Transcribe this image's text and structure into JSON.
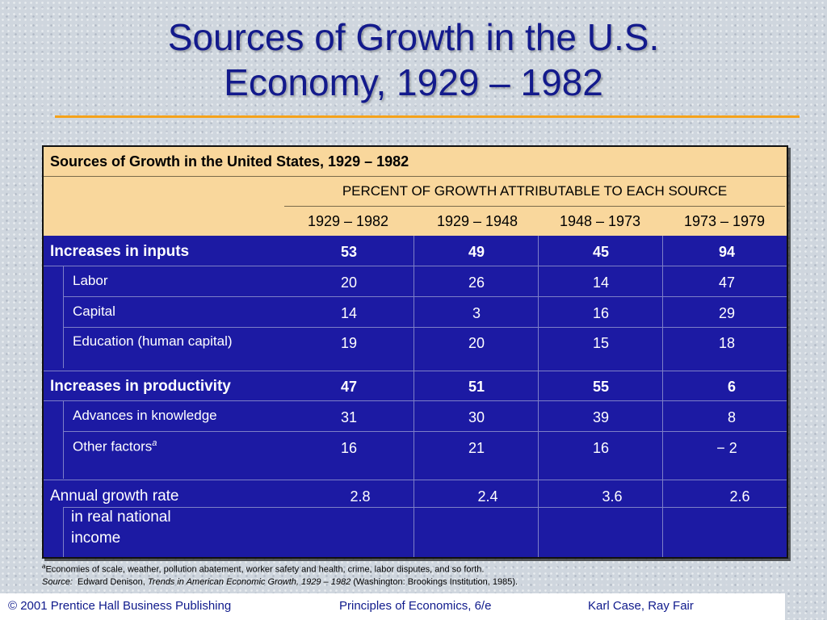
{
  "slide": {
    "title_line1": "Sources of Growth in the U.S.",
    "title_line2": "Economy, 1929 – 1982"
  },
  "table": {
    "caption": "Sources of Growth in the United States, 1929 – 1982",
    "header_group": "PERCENT OF GROWTH ATTRIBUTABLE TO EACH SOURCE",
    "periods": [
      "1929 – 1982",
      "1929 – 1948",
      "1948 – 1973",
      "1973 – 1979"
    ],
    "rows": [
      {
        "label": "Increases in inputs",
        "values": [
          "53",
          "49",
          "45",
          "94"
        ]
      },
      {
        "label": "Labor",
        "values": [
          "20",
          "26",
          "14",
          "47"
        ]
      },
      {
        "label": "Capital",
        "values": [
          "14",
          "3",
          "16",
          "29"
        ]
      },
      {
        "label": "Education (human capital)",
        "values": [
          "19",
          "20",
          "15",
          "18"
        ]
      },
      {
        "label": "Increases in productivity",
        "values": [
          "47",
          "51",
          "55",
          "6"
        ]
      },
      {
        "label": "Advances in knowledge",
        "values": [
          "31",
          "30",
          "39",
          "8"
        ]
      },
      {
        "label": "Other factors",
        "label_sup": "a",
        "values": [
          "16",
          "21",
          "16",
          "− 2"
        ]
      },
      {
        "label": "Annual growth rate",
        "label_line2": "in real national",
        "label_line3": "income",
        "values": [
          "2.8",
          "2.4",
          "3.6",
          "2.6"
        ]
      }
    ]
  },
  "notes": {
    "footnote_mark": "a",
    "footnote": "Economies of scale, weather, pollution abatement, worker safety and health, crime, labor disputes, and so forth.",
    "source_label": "Source:",
    "source_author": "Edward Denison,",
    "source_title": "Trends in American Economic Growth, 1929 – 1982",
    "source_pub": "(Washington:  Brookings Institution, 1985)."
  },
  "footer": {
    "copyright": "© 2001 Prentice Hall Business Publishing",
    "book": "Principles of Economics, 6/e",
    "authors": "Karl Case, Ray Fair"
  }
}
